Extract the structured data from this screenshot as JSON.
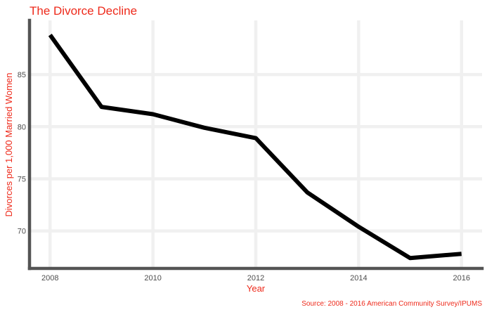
{
  "chart_data": {
    "type": "line",
    "title": "The Divorce Decline",
    "xlabel": "Year",
    "ylabel": "Divorces per 1,000 Married Women",
    "caption": "Source: 2008 - 2016 American Community Survey/IPUMS",
    "x": [
      2008,
      2009,
      2010,
      2011,
      2012,
      2013,
      2014,
      2015,
      2016
    ],
    "y": [
      88.8,
      81.9,
      81.2,
      79.9,
      78.9,
      73.7,
      70.4,
      67.4,
      67.8
    ],
    "xlim": [
      2007.6,
      2016.4
    ],
    "ylim": [
      66.4,
      90.2
    ],
    "xticks": [
      "2008",
      "2010",
      "2012",
      "2014",
      "2016"
    ],
    "yticks": [
      "70",
      "75",
      "80",
      "85"
    ],
    "grid": true,
    "legend": "none",
    "colors": {
      "line": "#000000",
      "accent": "#ee2a1b",
      "grid": "#f0f0f0",
      "axis": "#545454",
      "tick_text": "#4d4d4d"
    }
  }
}
